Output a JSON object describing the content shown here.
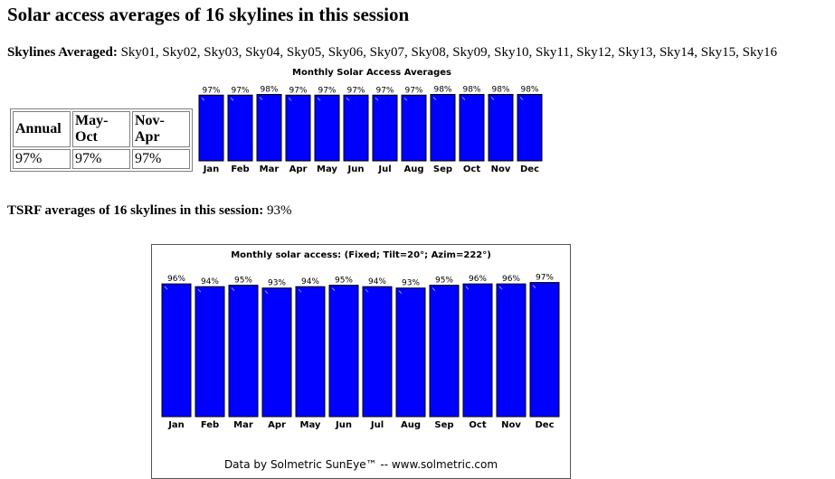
{
  "page_title": "Solar access averages of 16 skylines in this session",
  "skylines": {
    "label": "Skylines Averaged:",
    "value": "Sky01, Sky02, Sky03, Sky04, Sky05, Sky06, Sky07, Sky08, Sky09, Sky10, Sky11, Sky12, Sky13, Sky14, Sky15, Sky16"
  },
  "summary_table": {
    "headers": [
      "Annual",
      "May-Oct",
      "Nov-Apr"
    ],
    "values": [
      "97%",
      "97%",
      "97%"
    ]
  },
  "tsrf": {
    "label": "TSRF averages of 16 skylines in this session:",
    "value": "93%"
  },
  "colors": {
    "bar_fill": "#0000ff",
    "bar_border": "#000000"
  },
  "chart_data": [
    {
      "type": "bar",
      "title": "Monthly Solar Access Averages",
      "categories": [
        "Jan",
        "Feb",
        "Mar",
        "Apr",
        "May",
        "Jun",
        "Jul",
        "Aug",
        "Sep",
        "Oct",
        "Nov",
        "Dec"
      ],
      "values": [
        97,
        97,
        98,
        97,
        97,
        97,
        97,
        97,
        98,
        98,
        98,
        98
      ],
      "value_labels": [
        "97%",
        "97%",
        "98%",
        "97%",
        "97%",
        "97%",
        "97%",
        "97%",
        "98%",
        "98%",
        "98%",
        "98%"
      ],
      "ylim": [
        0,
        100
      ]
    },
    {
      "type": "bar",
      "title": "Monthly solar access: (Fixed; Tilt=20°; Azim=222°)",
      "categories": [
        "Jan",
        "Feb",
        "Mar",
        "Apr",
        "May",
        "Jun",
        "Jul",
        "Aug",
        "Sep",
        "Oct",
        "Nov",
        "Dec"
      ],
      "values": [
        96,
        94,
        95,
        93,
        94,
        95,
        94,
        93,
        95,
        96,
        96,
        97
      ],
      "value_labels": [
        "96%",
        "94%",
        "95%",
        "93%",
        "94%",
        "95%",
        "94%",
        "93%",
        "95%",
        "96%",
        "96%",
        "97%"
      ],
      "ylim": [
        0,
        100
      ],
      "footer": "Data by Solmetric SunEye™ -- www.solmetric.com"
    }
  ]
}
